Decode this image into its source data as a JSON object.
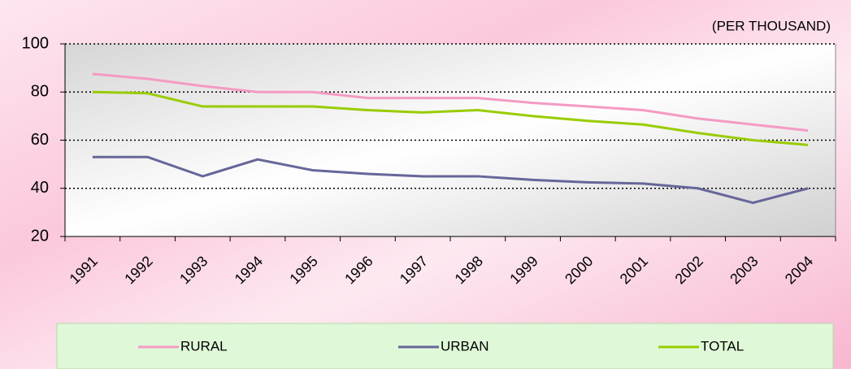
{
  "chart_data": {
    "type": "line",
    "subtitle": "(PER THOUSAND)",
    "categories": [
      "1991",
      "1992",
      "1993",
      "1994",
      "1995",
      "1996",
      "1997",
      "1998",
      "1999",
      "2000",
      "2001",
      "2002",
      "2003",
      "2004"
    ],
    "series": [
      {
        "name": "RURAL",
        "color": "#f59ac4",
        "values": [
          87.5,
          85.5,
          82.5,
          80,
          80,
          77.5,
          77.5,
          77.5,
          75.5,
          74,
          72.5,
          69,
          66.5,
          64
        ]
      },
      {
        "name": "URBAN",
        "color": "#666699",
        "values": [
          53,
          53,
          45,
          52,
          47.5,
          46,
          45,
          45,
          43.5,
          42.5,
          42,
          40,
          34,
          40
        ]
      },
      {
        "name": "TOTAL",
        "color": "#99cc00",
        "values": [
          80,
          79.5,
          74,
          74,
          74,
          72.5,
          71.5,
          72.5,
          70,
          68,
          66.5,
          63,
          60,
          58
        ]
      }
    ],
    "ylim": [
      20,
      100
    ],
    "yticks": [
      20,
      40,
      60,
      80,
      100
    ],
    "grid": true,
    "legend": "bottom"
  }
}
